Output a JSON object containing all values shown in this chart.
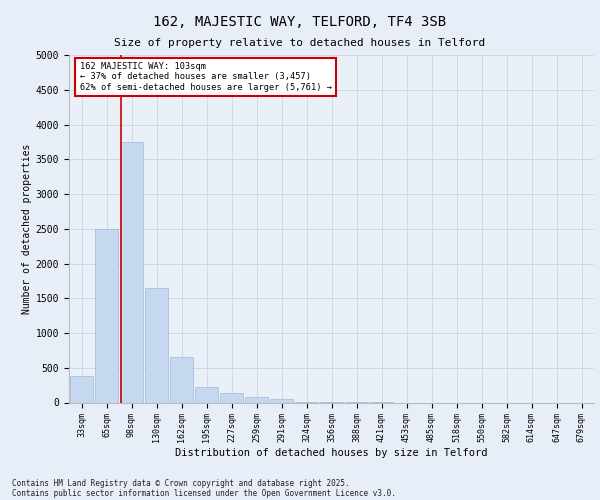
{
  "title1": "162, MAJESTIC WAY, TELFORD, TF4 3SB",
  "title2": "Size of property relative to detached houses in Telford",
  "xlabel": "Distribution of detached houses by size in Telford",
  "ylabel": "Number of detached properties",
  "categories": [
    "33sqm",
    "65sqm",
    "98sqm",
    "130sqm",
    "162sqm",
    "195sqm",
    "227sqm",
    "259sqm",
    "291sqm",
    "324sqm",
    "356sqm",
    "388sqm",
    "421sqm",
    "453sqm",
    "485sqm",
    "518sqm",
    "550sqm",
    "582sqm",
    "614sqm",
    "647sqm",
    "679sqm"
  ],
  "values": [
    375,
    2500,
    3750,
    1650,
    650,
    225,
    130,
    75,
    50,
    10,
    5,
    2,
    1,
    0,
    0,
    0,
    0,
    0,
    0,
    0,
    0
  ],
  "bar_color": "#c5d8f0",
  "bar_edge_color": "#a0b8d8",
  "red_line_x": 1.575,
  "annotation_text": "162 MAJESTIC WAY: 103sqm\n← 37% of detached houses are smaller (3,457)\n62% of semi-detached houses are larger (5,761) →",
  "annotation_box_color": "#ffffff",
  "annotation_box_edge_color": "#cc0000",
  "red_line_color": "#cc0000",
  "ylim": [
    0,
    5000
  ],
  "yticks": [
    0,
    500,
    1000,
    1500,
    2000,
    2500,
    3000,
    3500,
    4000,
    4500,
    5000
  ],
  "grid_color": "#d0d8e8",
  "bg_color": "#e8eef8",
  "plot_bg_color": "#eaf0f8",
  "footnote1": "Contains HM Land Registry data © Crown copyright and database right 2025.",
  "footnote2": "Contains public sector information licensed under the Open Government Licence v3.0."
}
